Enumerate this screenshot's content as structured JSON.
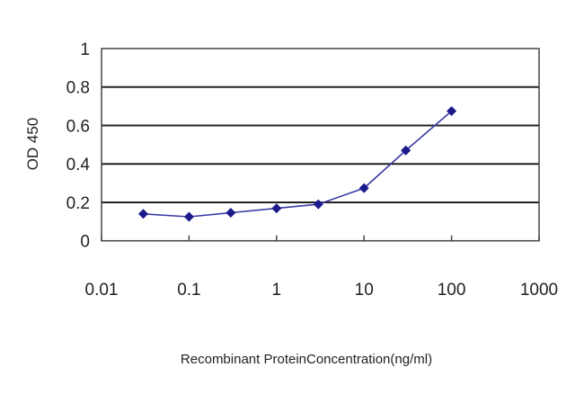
{
  "chart_data": {
    "type": "line",
    "title": "",
    "xlabel": "Recombinant ProteinConcentration(ng/ml)",
    "ylabel": "OD 450",
    "x_scale": "log",
    "xlim": [
      0.01,
      1000
    ],
    "ylim": [
      0,
      1
    ],
    "x_ticks": [
      "0.01",
      "0.1",
      "1",
      "10",
      "100",
      "1000"
    ],
    "y_ticks": [
      "0",
      "0.2",
      "0.4",
      "0.6",
      "0.8",
      "1"
    ],
    "grid": "horizontal",
    "legend": "none",
    "series": [
      {
        "color": "#1a1a8c",
        "marker": "diamond",
        "x": [
          0.03,
          0.1,
          0.3,
          1,
          3,
          10,
          30,
          100
        ],
        "y": [
          0.14,
          0.125,
          0.146,
          0.169,
          0.19,
          0.274,
          0.47,
          0.675
        ]
      }
    ]
  }
}
